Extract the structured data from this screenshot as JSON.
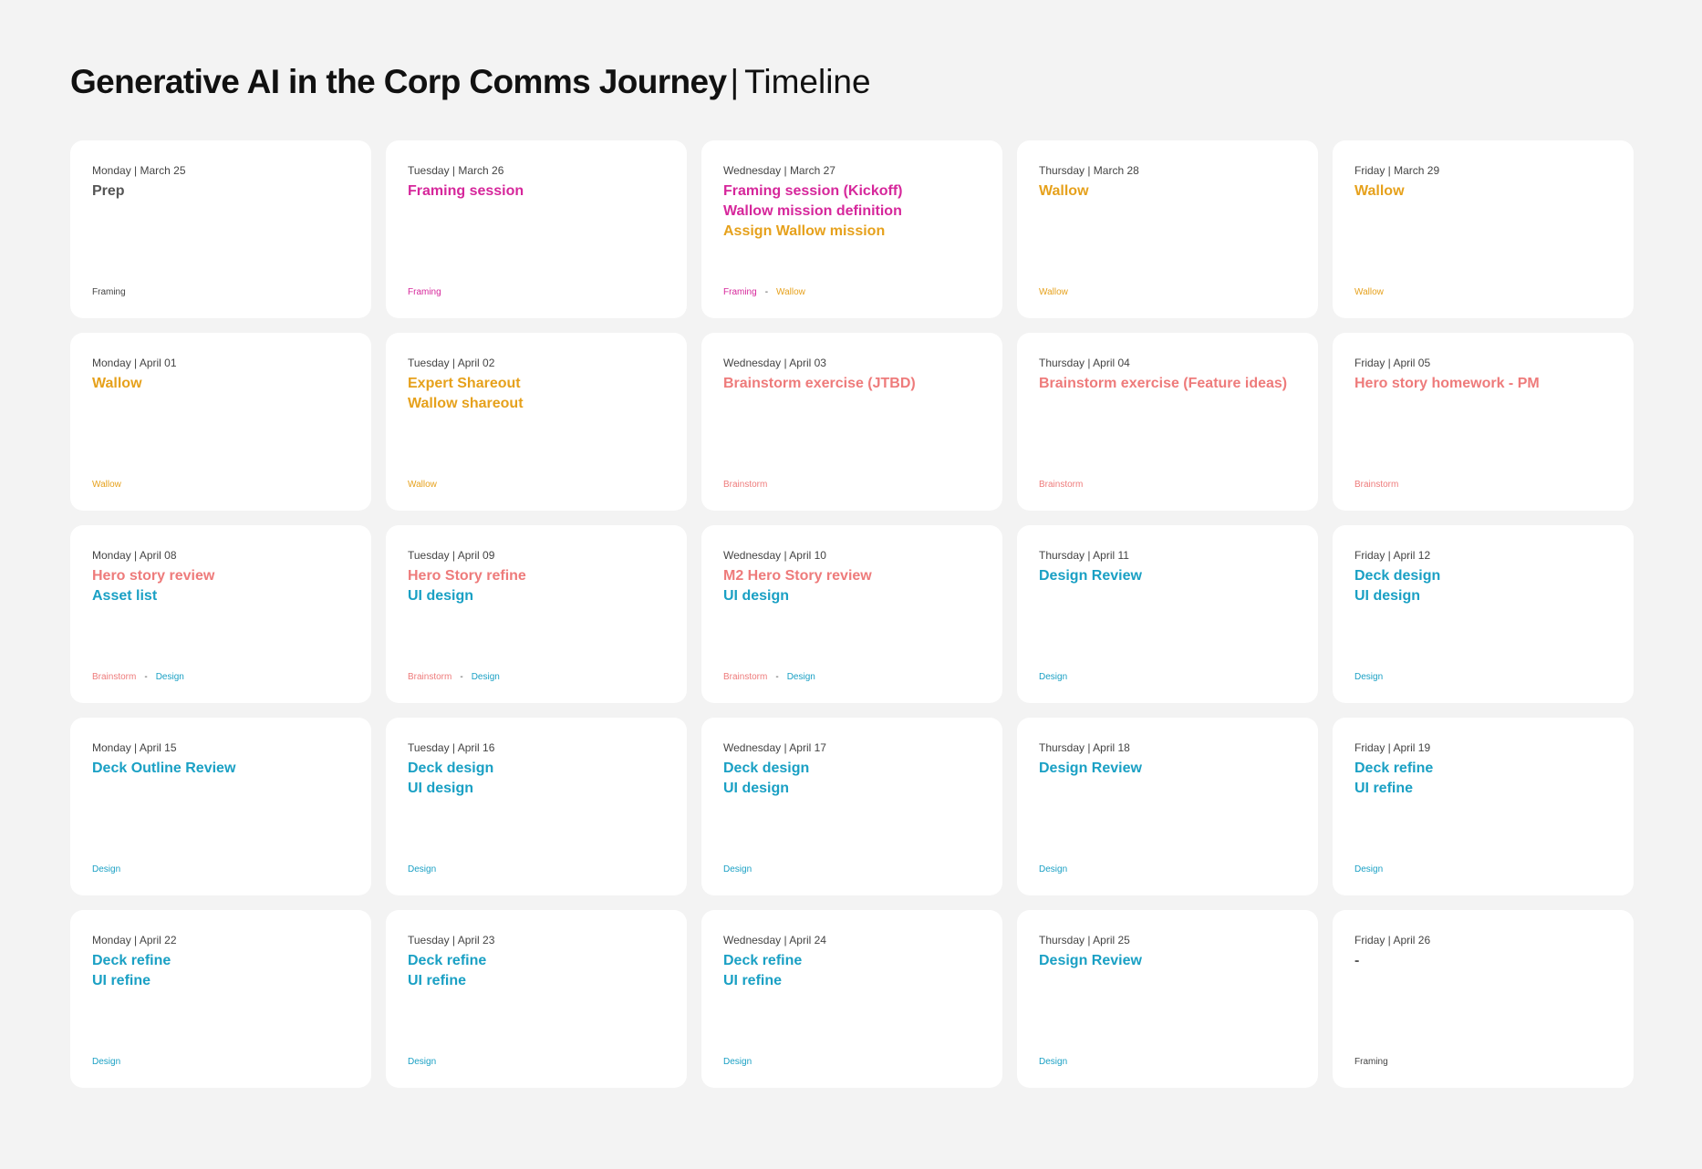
{
  "header": {
    "title": "Generative AI in the Corp Comms Journey",
    "separator": "|",
    "subtitle": "Timeline"
  },
  "colors": {
    "Prep": "#555555",
    "Framing": "#d6279b",
    "Wallow": "#e6a11c",
    "Brainstorm": "#ee7b7b",
    "Design": "#1aa0c4",
    "Neutral": "#444444"
  },
  "cards": [
    {
      "date": "Monday | March 25",
      "events": [
        {
          "text": "Prep",
          "cat": "Prep"
        }
      ],
      "tags": [
        {
          "text": "Framing",
          "cat": "Neutral"
        }
      ]
    },
    {
      "date": "Tuesday | March 26",
      "events": [
        {
          "text": "Framing session",
          "cat": "Framing"
        }
      ],
      "tags": [
        {
          "text": "Framing",
          "cat": "Framing"
        }
      ]
    },
    {
      "date": "Wednesday | March 27",
      "events": [
        {
          "text": "Framing session (Kickoff)",
          "cat": "Framing"
        },
        {
          "text": "Wallow mission definition",
          "cat": "Framing"
        },
        {
          "text": "Assign Wallow mission",
          "cat": "Wallow"
        }
      ],
      "tags": [
        {
          "text": "Framing",
          "cat": "Framing"
        },
        {
          "text": "Wallow",
          "cat": "Wallow"
        }
      ]
    },
    {
      "date": "Thursday | March 28",
      "events": [
        {
          "text": "Wallow",
          "cat": "Wallow"
        }
      ],
      "tags": [
        {
          "text": "Wallow",
          "cat": "Wallow"
        }
      ]
    },
    {
      "date": "Friday | March 29",
      "events": [
        {
          "text": "Wallow",
          "cat": "Wallow"
        }
      ],
      "tags": [
        {
          "text": "Wallow",
          "cat": "Wallow"
        }
      ]
    },
    {
      "date": "Monday | April 01",
      "events": [
        {
          "text": "Wallow",
          "cat": "Wallow"
        }
      ],
      "tags": [
        {
          "text": "Wallow",
          "cat": "Wallow"
        }
      ]
    },
    {
      "date": "Tuesday | April 02",
      "events": [
        {
          "text": "Expert Shareout",
          "cat": "Wallow"
        },
        {
          "text": "Wallow shareout",
          "cat": "Wallow"
        }
      ],
      "tags": [
        {
          "text": "Wallow",
          "cat": "Wallow"
        }
      ]
    },
    {
      "date": "Wednesday | April 03",
      "events": [
        {
          "text": "Brainstorm exercise (JTBD)",
          "cat": "Brainstorm"
        }
      ],
      "tags": [
        {
          "text": "Brainstorm",
          "cat": "Brainstorm"
        }
      ]
    },
    {
      "date": "Thursday | April 04",
      "events": [
        {
          "text": "Brainstorm exercise (Feature ideas)",
          "cat": "Brainstorm"
        }
      ],
      "tags": [
        {
          "text": "Brainstorm",
          "cat": "Brainstorm"
        }
      ]
    },
    {
      "date": "Friday | April 05",
      "events": [
        {
          "text": "Hero story homework - PM",
          "cat": "Brainstorm"
        }
      ],
      "tags": [
        {
          "text": "Brainstorm",
          "cat": "Brainstorm"
        }
      ]
    },
    {
      "date": "Monday | April 08",
      "events": [
        {
          "text": "Hero story review",
          "cat": "Brainstorm"
        },
        {
          "text": "Asset list",
          "cat": "Design"
        }
      ],
      "tags": [
        {
          "text": "Brainstorm",
          "cat": "Brainstorm"
        },
        {
          "text": "Design",
          "cat": "Design"
        }
      ]
    },
    {
      "date": "Tuesday | April 09",
      "events": [
        {
          "text": "Hero Story refine",
          "cat": "Brainstorm"
        },
        {
          "text": "UI design",
          "cat": "Design"
        }
      ],
      "tags": [
        {
          "text": "Brainstorm",
          "cat": "Brainstorm"
        },
        {
          "text": "Design",
          "cat": "Design"
        }
      ]
    },
    {
      "date": "Wednesday | April 10",
      "events": [
        {
          "text": "M2 Hero Story review",
          "cat": "Brainstorm"
        },
        {
          "text": "UI design",
          "cat": "Design"
        }
      ],
      "tags": [
        {
          "text": "Brainstorm",
          "cat": "Brainstorm"
        },
        {
          "text": "Design",
          "cat": "Design"
        }
      ]
    },
    {
      "date": "Thursday | April 11",
      "events": [
        {
          "text": "Design Review",
          "cat": "Design"
        }
      ],
      "tags": [
        {
          "text": "Design",
          "cat": "Design"
        }
      ]
    },
    {
      "date": "Friday | April 12",
      "events": [
        {
          "text": "Deck design",
          "cat": "Design"
        },
        {
          "text": "UI design",
          "cat": "Design"
        }
      ],
      "tags": [
        {
          "text": "Design",
          "cat": "Design"
        }
      ]
    },
    {
      "date": "Monday | April 15",
      "events": [
        {
          "text": "Deck Outline Review",
          "cat": "Design"
        }
      ],
      "tags": [
        {
          "text": "Design",
          "cat": "Design"
        }
      ]
    },
    {
      "date": "Tuesday | April 16",
      "events": [
        {
          "text": "Deck design",
          "cat": "Design"
        },
        {
          "text": "UI design",
          "cat": "Design"
        }
      ],
      "tags": [
        {
          "text": "Design",
          "cat": "Design"
        }
      ]
    },
    {
      "date": "Wednesday | April 17",
      "events": [
        {
          "text": "Deck design",
          "cat": "Design"
        },
        {
          "text": "UI design",
          "cat": "Design"
        }
      ],
      "tags": [
        {
          "text": "Design",
          "cat": "Design"
        }
      ]
    },
    {
      "date": "Thursday | April 18",
      "events": [
        {
          "text": "Design Review",
          "cat": "Design"
        }
      ],
      "tags": [
        {
          "text": "Design",
          "cat": "Design"
        }
      ]
    },
    {
      "date": "Friday | April 19",
      "events": [
        {
          "text": "Deck refine",
          "cat": "Design"
        },
        {
          "text": "UI refine",
          "cat": "Design"
        }
      ],
      "tags": [
        {
          "text": "Design",
          "cat": "Design"
        }
      ]
    },
    {
      "date": "Monday | April 22",
      "events": [
        {
          "text": "Deck refine",
          "cat": "Design"
        },
        {
          "text": "UI refine",
          "cat": "Design"
        }
      ],
      "tags": [
        {
          "text": "Design",
          "cat": "Design"
        }
      ]
    },
    {
      "date": "Tuesday | April 23",
      "events": [
        {
          "text": "Deck refine",
          "cat": "Design"
        },
        {
          "text": "UI refine",
          "cat": "Design"
        }
      ],
      "tags": [
        {
          "text": "Design",
          "cat": "Design"
        }
      ]
    },
    {
      "date": "Wednesday | April 24",
      "events": [
        {
          "text": "Deck refine",
          "cat": "Design"
        },
        {
          "text": "UI refine",
          "cat": "Design"
        }
      ],
      "tags": [
        {
          "text": "Design",
          "cat": "Design"
        }
      ]
    },
    {
      "date": "Thursday | April 25",
      "events": [
        {
          "text": "Design Review",
          "cat": "Design"
        }
      ],
      "tags": [
        {
          "text": "Design",
          "cat": "Design"
        }
      ]
    },
    {
      "date": "Friday | April 26",
      "events": [
        {
          "text": "-",
          "cat": "Prep"
        }
      ],
      "tags": [
        {
          "text": "Framing",
          "cat": "Neutral"
        }
      ]
    }
  ]
}
